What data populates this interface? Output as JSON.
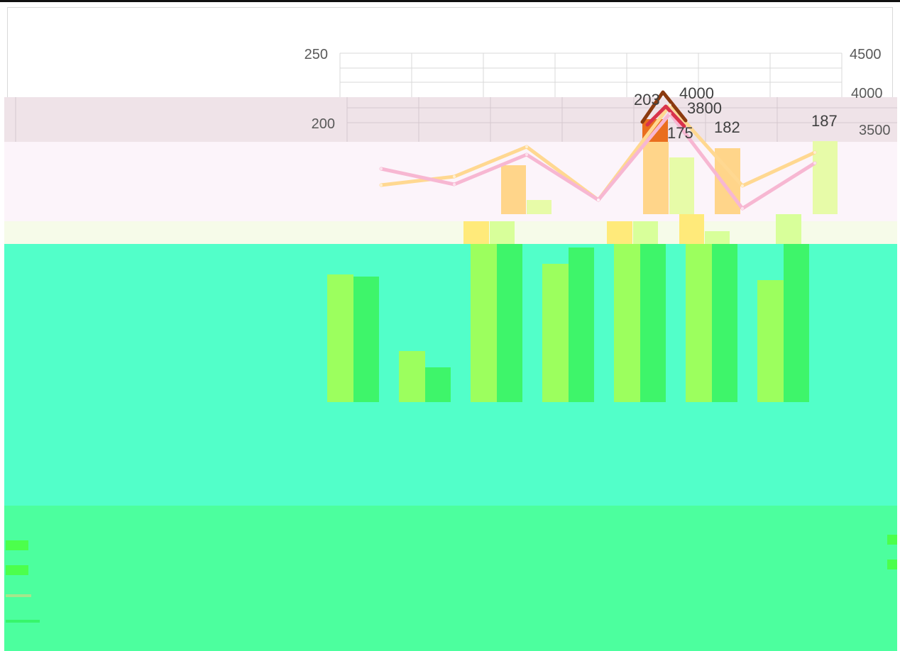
{
  "chart_data": {
    "type": "bar",
    "categories": [
      "",
      "",
      "",
      "",
      "",
      "",
      ""
    ],
    "left_axis": {
      "ticks": [
        "250",
        "200"
      ],
      "range": [
        0,
        250
      ]
    },
    "right_axis": {
      "ticks": [
        "4500",
        "4000",
        "3500"
      ],
      "range": [
        0,
        4500
      ]
    },
    "series": [
      {
        "kind": "bar",
        "axis": "left",
        "values": [
          null,
          null,
          null,
          null,
          185,
          182,
          187
        ],
        "color": "#ea6e1e"
      },
      {
        "kind": "line",
        "axis": "right",
        "values": [
          null,
          null,
          null,
          null,
          4000,
          3800,
          null
        ],
        "color": "#8b3a0f"
      },
      {
        "kind": "line",
        "axis": "right",
        "values": [
          null,
          null,
          null,
          null,
          3800,
          null,
          null
        ],
        "color": "#d9334a"
      }
    ],
    "data_labels": [
      "203",
      "4000",
      "3800",
      "182",
      "187",
      "175"
    ],
    "legend_markers": [
      {
        "color": "#4cff4c"
      },
      {
        "color": "#4cff4c"
      },
      {
        "color": "#a6e68c"
      },
      {
        "color": "#37f56b"
      }
    ],
    "colors": {
      "primary_bar": "#9cff5e",
      "secondary_bar": "#3ef56a",
      "background_band": "#52ffc9",
      "pink_band": "#fcf4fa",
      "line_brown": "#8b3a0f",
      "line_red": "#d9334a",
      "line_peach": "#ffd891",
      "line_pink": "#f7b7d2"
    }
  }
}
